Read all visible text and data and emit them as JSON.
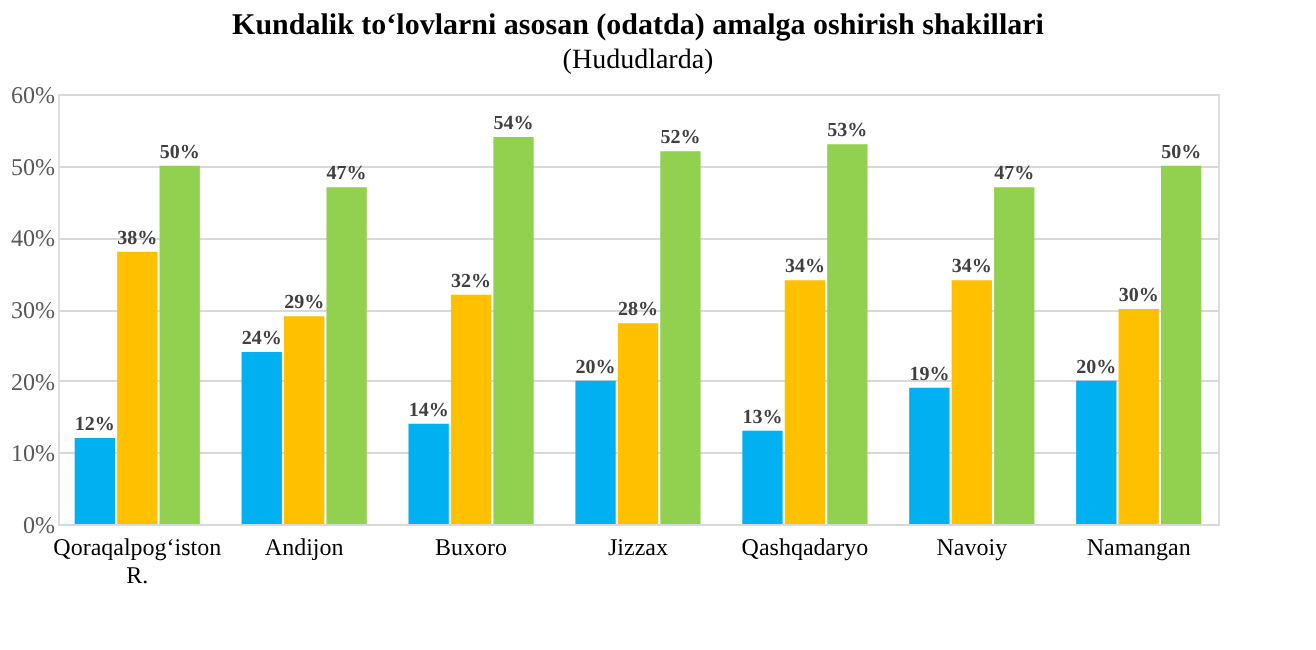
{
  "chart_data": {
    "type": "bar",
    "title": "Kundalik to‘lovlarni asosan (odatda) amalga oshirish shakillari",
    "subtitle": "(Hududlarda)",
    "categories": [
      "Qoraqalpog‘iston R.",
      "Andijon",
      "Buxoro",
      "Jizzax",
      "Qashqadaryo",
      "Navoiy",
      "Namangan"
    ],
    "series": [
      {
        "color": "#00b0f0",
        "values": [
          12,
          24,
          14,
          20,
          13,
          19,
          20
        ],
        "value_labels": [
          "12%",
          "24%",
          "14%",
          "20%",
          "13%",
          "19%",
          "20%"
        ]
      },
      {
        "color": "#ffc000",
        "values": [
          38,
          29,
          32,
          28,
          34,
          34,
          30
        ],
        "value_labels": [
          "38%",
          "29%",
          "32%",
          "28%",
          "34%",
          "34%",
          "30%"
        ]
      },
      {
        "color": "#92d050",
        "values": [
          50,
          47,
          54,
          52,
          53,
          47,
          50
        ],
        "value_labels": [
          "50%",
          "47%",
          "54%",
          "52%",
          "53%",
          "47%",
          "50%"
        ]
      }
    ],
    "ylim": [
      0,
      60
    ],
    "yticks": [
      {
        "value": 0,
        "label": "0%"
      },
      {
        "value": 10,
        "label": "10%"
      },
      {
        "value": 20,
        "label": "20%"
      },
      {
        "value": 30,
        "label": "30%"
      },
      {
        "value": 40,
        "label": "40%"
      },
      {
        "value": 50,
        "label": "50%"
      },
      {
        "value": 60,
        "label": "60%"
      }
    ],
    "grid": "y",
    "legend": false
  }
}
